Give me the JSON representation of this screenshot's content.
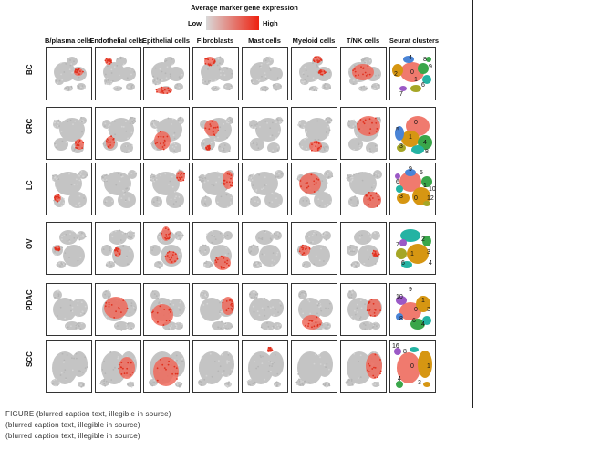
{
  "legend": {
    "title": "Average marker gene expression",
    "low": "Low",
    "high": "High",
    "colors": [
      "#d9d9d9",
      "#ee2211"
    ]
  },
  "columns": [
    "B/plasma cells",
    "Endothelial cells",
    "Epithelial cells",
    "Fibroblasts",
    "Mast cells",
    "Myeloid cells",
    "T/NK cells",
    "Seurat clusters"
  ],
  "rows": [
    "BC",
    "CRC",
    "LC",
    "OV",
    "PDAC",
    "SCC"
  ],
  "seurat_clusters": [
    [
      "2",
      "0",
      "8",
      "9",
      "1",
      "6",
      "7",
      "4"
    ],
    [
      "0",
      "1",
      "5",
      "3",
      "4",
      "8"
    ],
    [
      "9",
      "5",
      "6",
      "1",
      "3",
      "0",
      "10",
      "12"
    ],
    [
      "7",
      "2",
      "1",
      "3",
      "4",
      "6"
    ],
    [
      "9",
      "10",
      "1",
      "3",
      "0",
      "6",
      "4",
      "8"
    ],
    [
      "16",
      "8",
      "0",
      "1",
      "3",
      "4"
    ]
  ],
  "caption": {
    "lines": [
      "FIGURE (blurred caption text, illegible in source)",
      "(blurred caption text, illegible in source)",
      "(blurred caption text, illegible in source)"
    ]
  },
  "colors": {
    "grey": "#c8c8c8",
    "red": "#ee4433",
    "cluster_salmon": "#f07a6e",
    "cluster_orange": "#d69612",
    "cluster_green": "#3aa64a",
    "cluster_teal": "#24b3a3",
    "cluster_blue": "#4a84d6",
    "cluster_purple": "#9b59c6",
    "cluster_olive": "#a5a626"
  }
}
